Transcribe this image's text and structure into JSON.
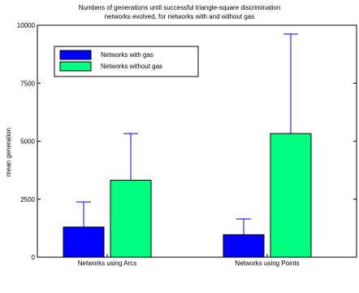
{
  "chart_data": {
    "type": "bar",
    "title_lines": [
      "Numbers of generations until successful triangle-square discrimination",
      "networks evolved, for networks with and without gas"
    ],
    "xlabel": "",
    "ylabel": "mean generation",
    "ylim": [
      0,
      10000
    ],
    "yticks": [
      0,
      2500,
      5000,
      7500,
      10000
    ],
    "categories": [
      "Networks using Arcs",
      "Networks using Points"
    ],
    "series": [
      {
        "name": "Networks with gas",
        "color": "#0000ff",
        "values": [
          1300,
          970
        ],
        "error_upper": [
          2380,
          1650
        ]
      },
      {
        "name": "Networks without gas",
        "color": "#00ff80",
        "values": [
          3320,
          5330
        ],
        "error_upper": [
          5330,
          9620
        ]
      }
    ],
    "legend_position": "top-left",
    "grid": false
  }
}
